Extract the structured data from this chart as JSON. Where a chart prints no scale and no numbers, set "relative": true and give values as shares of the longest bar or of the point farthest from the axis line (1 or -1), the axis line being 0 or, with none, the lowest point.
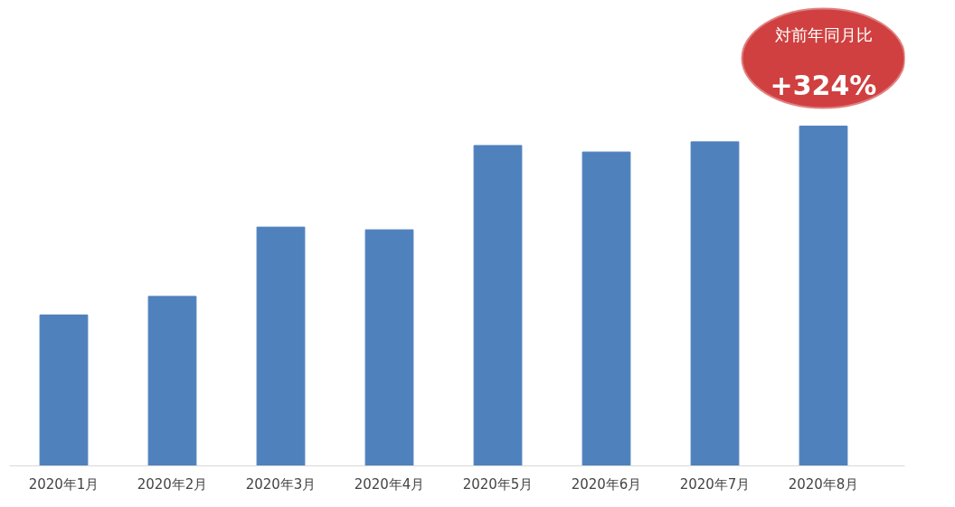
{
  "chart_data": {
    "type": "bar",
    "relative": true,
    "categories": [
      "2020年1月",
      "2020年2月",
      "2020年3月",
      "2020年4月",
      "2020年5月",
      "2020年6月",
      "2020年7月",
      "2020年8月"
    ],
    "values": [
      0.444,
      0.499,
      0.703,
      0.695,
      0.943,
      0.924,
      0.954,
      1
    ],
    "color": "#4f81bd",
    "grid": false,
    "annotations": [
      "対前年同月比",
      "+324%"
    ]
  }
}
